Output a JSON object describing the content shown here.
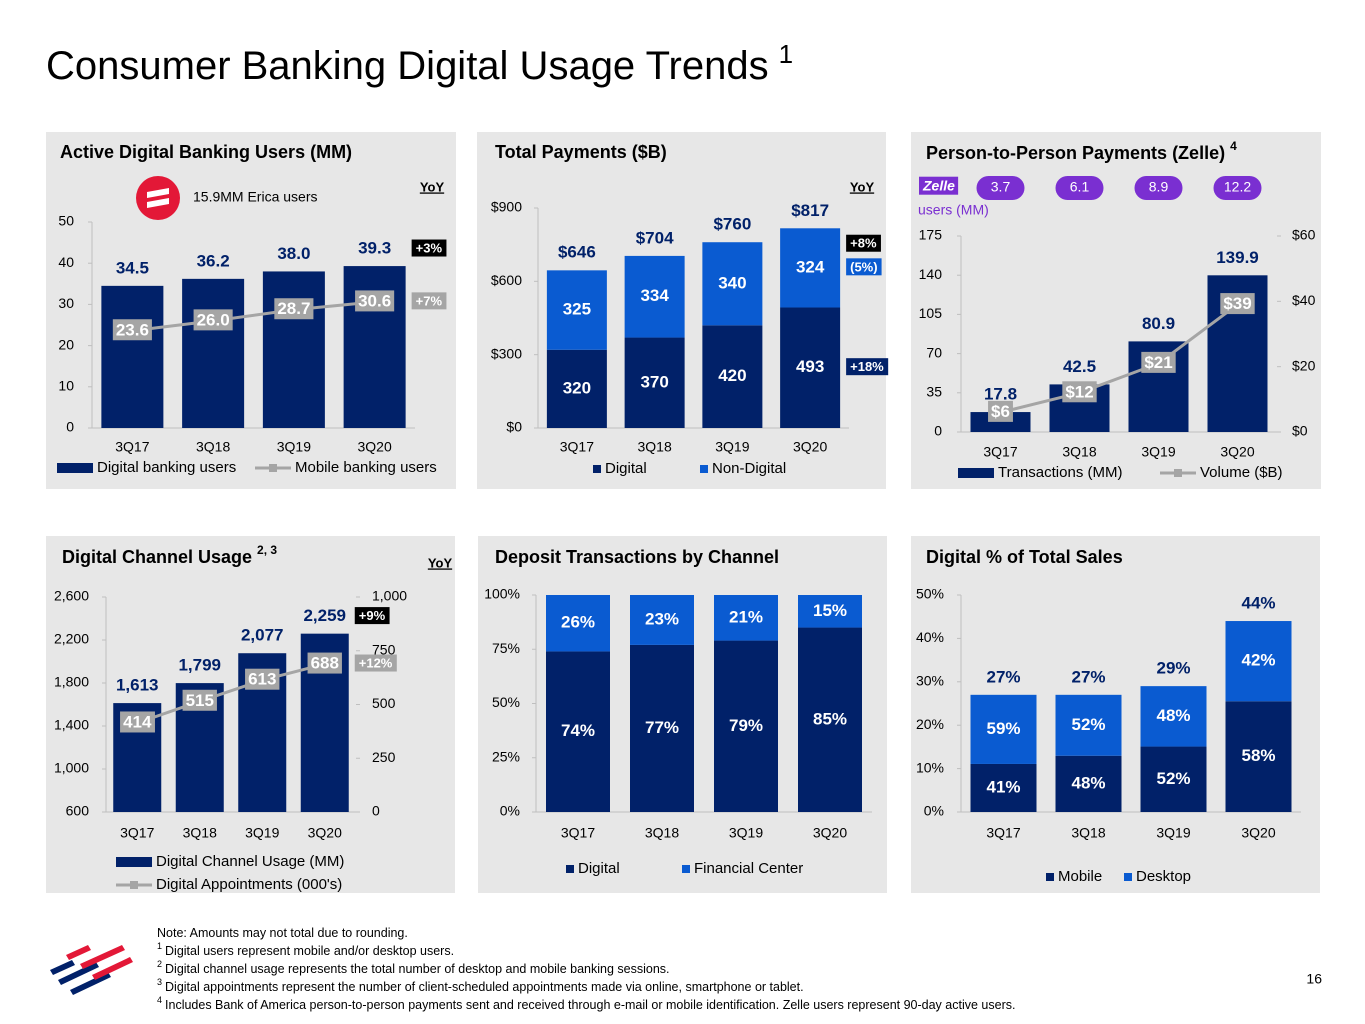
{
  "title": "Consumer Banking Digital Usage Trends",
  "title_sup": "1",
  "chart_data": [
    {
      "type": "bar_line",
      "title": "Active Digital Banking Users (MM)",
      "yoy_header": "YoY",
      "annotation": "15.9MM Erica users",
      "categories": [
        "3Q17",
        "3Q18",
        "3Q19",
        "3Q20"
      ],
      "series": [
        {
          "name": "Digital banking users",
          "type": "bar",
          "color": "#012169",
          "values": [
            34.5,
            36.2,
            38.0,
            39.3
          ],
          "value_labels": [
            "34.5",
            "36.2",
            "38.0",
            "39.3"
          ],
          "yoy": "+3%"
        },
        {
          "name": "Mobile banking users",
          "type": "line",
          "color": "#a5a5a5",
          "values": [
            23.6,
            26.0,
            28.7,
            30.6
          ],
          "value_labels": [
            "23.6",
            "26.0",
            "28.7",
            "30.6"
          ],
          "yoy": "+7%"
        }
      ],
      "ylim": [
        0,
        50
      ],
      "yticks": [
        0,
        10,
        20,
        30,
        40,
        50
      ]
    },
    {
      "type": "stacked_bar",
      "title": "Total Payments ($B)",
      "yoy_header": "YoY",
      "categories": [
        "3Q17",
        "3Q18",
        "3Q19",
        "3Q20"
      ],
      "series": [
        {
          "name": "Digital",
          "color": "#012169",
          "values": [
            320,
            370,
            420,
            493
          ],
          "yoy": "+18%"
        },
        {
          "name": "Non-Digital",
          "color": "#0a5bd1",
          "values": [
            325,
            334,
            340,
            324
          ],
          "yoy": "(5%)"
        }
      ],
      "totals": [
        646,
        704,
        760,
        817
      ],
      "total_labels": [
        "$646",
        "$704",
        "$760",
        "$817"
      ],
      "total_yoy": "+8%",
      "ylim": [
        0,
        900
      ],
      "yticks": [
        {
          "value": 0,
          "label": "$0"
        },
        {
          "value": 300,
          "label": "$300"
        },
        {
          "value": 600,
          "label": "$600"
        },
        {
          "value": 900,
          "label": "$900"
        }
      ]
    },
    {
      "type": "bar_line",
      "title": "Person-to-Person Payments (Zelle)",
      "title_sup": "4",
      "logo_text": "Zelle",
      "users": [
        3.7,
        6.1,
        8.9,
        12.2
      ],
      "users_color": "#7a2fd1",
      "users_label": "users (MM)",
      "categories": [
        "3Q17",
        "3Q18",
        "3Q19",
        "3Q20"
      ],
      "series": [
        {
          "name": "Transactions (MM)",
          "type": "bar",
          "color": "#012169",
          "values": [
            17.8,
            42.5,
            80.9,
            139.9
          ]
        },
        {
          "name": "Volume ($B)",
          "type": "line",
          "axis": "y2",
          "color": "#a5a5a5",
          "values": [
            6,
            12,
            21,
            39
          ],
          "value_labels": [
            "$6",
            "$12",
            "$21",
            "$39"
          ]
        }
      ],
      "ylim": [
        0,
        175
      ],
      "yticks": [
        0,
        35,
        70,
        105,
        140,
        175
      ],
      "y2lim": [
        0,
        60
      ],
      "y2ticks": [
        {
          "value": 0,
          "label": "$0"
        },
        {
          "value": 20,
          "label": "$20"
        },
        {
          "value": 40,
          "label": "$40"
        },
        {
          "value": 60,
          "label": "$60"
        }
      ]
    },
    {
      "type": "bar_line",
      "title": "Digital Channel Usage",
      "title_sup": "2, 3",
      "yoy_header": "YoY",
      "categories": [
        "3Q17",
        "3Q18",
        "3Q19",
        "3Q20"
      ],
      "series": [
        {
          "name": "Digital Channel Usage (MM)",
          "type": "bar",
          "color": "#012169",
          "values": [
            1613,
            1799,
            2077,
            2259
          ],
          "value_labels": [
            "1,613",
            "1,799",
            "2,077",
            "2,259"
          ],
          "yoy": "+9%"
        },
        {
          "name": "Digital Appointments (000's)",
          "type": "line",
          "axis": "y2",
          "color": "#a5a5a5",
          "values": [
            414,
            515,
            613,
            688
          ],
          "yoy": "+12%"
        }
      ],
      "ylim": [
        600,
        2600
      ],
      "yticks": [
        {
          "value": 600,
          "label": "600"
        },
        {
          "value": 1000,
          "label": "1,000"
        },
        {
          "value": 1400,
          "label": "1,400"
        },
        {
          "value": 1800,
          "label": "1,800"
        },
        {
          "value": 2200,
          "label": "2,200"
        },
        {
          "value": 2600,
          "label": "2,600"
        }
      ],
      "y2lim": [
        0,
        1000
      ],
      "y2ticks": [
        0,
        250,
        500,
        750,
        {
          "value": 1000,
          "label": "1,000"
        }
      ]
    },
    {
      "type": "stacked_bar",
      "title": "Deposit Transactions by Channel",
      "categories": [
        "3Q17",
        "3Q18",
        "3Q19",
        "3Q20"
      ],
      "series": [
        {
          "name": "Digital",
          "color": "#012169",
          "values": [
            74,
            77,
            79,
            85
          ],
          "value_labels": [
            "74%",
            "77%",
            "79%",
            "85%"
          ]
        },
        {
          "name": "Financial Center",
          "color": "#0a5bd1",
          "values": [
            26,
            23,
            21,
            15
          ],
          "value_labels": [
            "26%",
            "23%",
            "21%",
            "15%"
          ]
        }
      ],
      "ylim": [
        0,
        100
      ],
      "yticks": [
        {
          "value": 0,
          "label": "0%"
        },
        {
          "value": 25,
          "label": "25%"
        },
        {
          "value": 50,
          "label": "50%"
        },
        {
          "value": 75,
          "label": "75%"
        },
        {
          "value": 100,
          "label": "100%"
        }
      ]
    },
    {
      "type": "share_bar",
      "title": "Digital % of Total Sales",
      "categories": [
        "3Q17",
        "3Q18",
        "3Q19",
        "3Q20"
      ],
      "totals": [
        27,
        27,
        29,
        44
      ],
      "total_labels": [
        "27%",
        "27%",
        "29%",
        "44%"
      ],
      "series": [
        {
          "name": "Mobile",
          "color": "#012169",
          "values": [
            41,
            48,
            52,
            58
          ],
          "value_labels": [
            "41%",
            "48%",
            "52%",
            "58%"
          ]
        },
        {
          "name": "Desktop",
          "color": "#0a5bd1",
          "values": [
            59,
            52,
            48,
            42
          ],
          "value_labels": [
            "59%",
            "52%",
            "48%",
            "42%"
          ]
        }
      ],
      "ylim": [
        0,
        50
      ],
      "yticks": [
        {
          "value": 0,
          "label": "0%"
        },
        {
          "value": 10,
          "label": "10%"
        },
        {
          "value": 20,
          "label": "20%"
        },
        {
          "value": 30,
          "label": "30%"
        },
        {
          "value": 40,
          "label": "40%"
        },
        {
          "value": 50,
          "label": "50%"
        }
      ]
    }
  ],
  "notes": [
    {
      "text": "Note: Amounts may not total due to rounding."
    },
    {
      "marker": "1",
      "text": "Digital users represent mobile and/or desktop users."
    },
    {
      "marker": "2",
      "text": "Digital channel usage represents the total number of desktop and mobile banking sessions."
    },
    {
      "marker": "3",
      "text": "Digital appointments represent the number of client-scheduled appointments made via online, smartphone or tablet."
    },
    {
      "marker": "4",
      "text": "Includes Bank of America person-to-person payments sent and received through e-mail or mobile identification. Zelle users represent 90-day active users."
    }
  ],
  "page_number": 16
}
